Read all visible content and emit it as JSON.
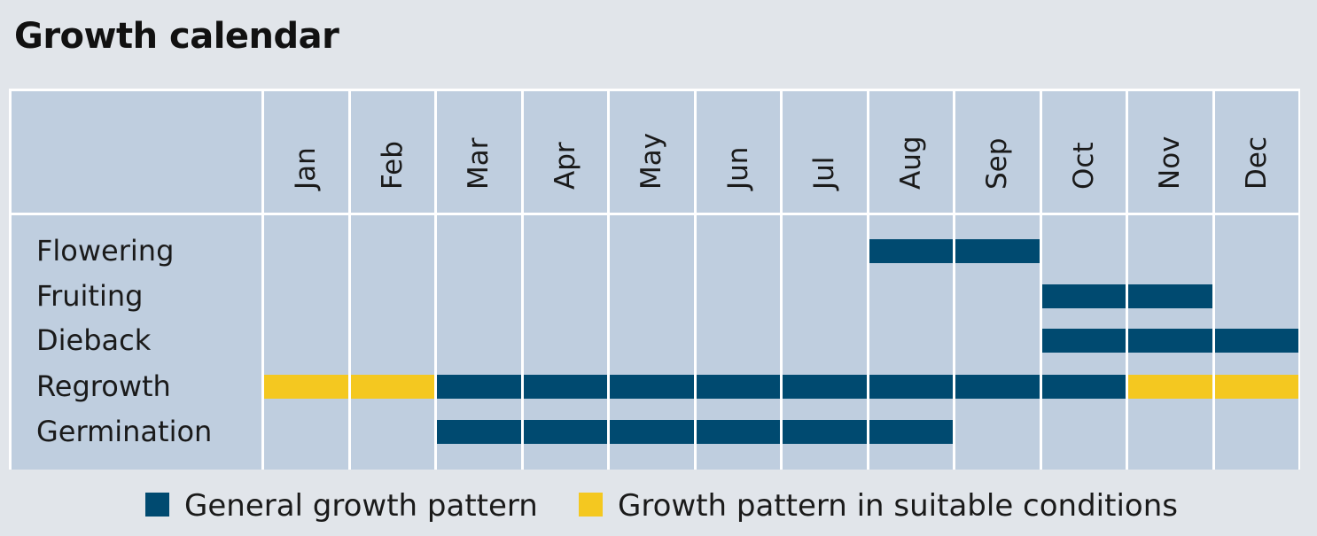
{
  "title": "Growth calendar",
  "chart_data": {
    "type": "table",
    "title": "Growth calendar",
    "months": [
      "Jan",
      "Feb",
      "Mar",
      "Apr",
      "May",
      "Jun",
      "Jul",
      "Aug",
      "Sep",
      "Oct",
      "Nov",
      "Dec"
    ],
    "stages": [
      {
        "name": "Flowering",
        "months": [
          "",
          "",
          "",
          "",
          "",
          "",
          "",
          "general",
          "general",
          "",
          "",
          ""
        ]
      },
      {
        "name": "Fruiting",
        "months": [
          "",
          "",
          "",
          "",
          "",
          "",
          "",
          "",
          "",
          "general",
          "general",
          ""
        ]
      },
      {
        "name": "Dieback",
        "months": [
          "",
          "",
          "",
          "",
          "",
          "",
          "",
          "",
          "",
          "general",
          "general",
          "general"
        ]
      },
      {
        "name": "Regrowth",
        "months": [
          "suitable",
          "suitable",
          "general",
          "general",
          "general",
          "general",
          "general",
          "general",
          "general",
          "general",
          "suitable",
          "suitable"
        ]
      },
      {
        "name": "Germination",
        "months": [
          "",
          "",
          "general",
          "general",
          "general",
          "general",
          "general",
          "general",
          "",
          "",
          "",
          ""
        ]
      }
    ],
    "legend": [
      {
        "key": "general",
        "label": "General growth pattern",
        "color": "#004a70"
      },
      {
        "key": "suitable",
        "label": "Growth pattern in suitable conditions",
        "color": "#f4c820"
      }
    ],
    "legend_position": "bottom"
  },
  "colors": {
    "background": "#e1e5ea",
    "cell": "#bfcedf",
    "grid": "#ffffff"
  }
}
